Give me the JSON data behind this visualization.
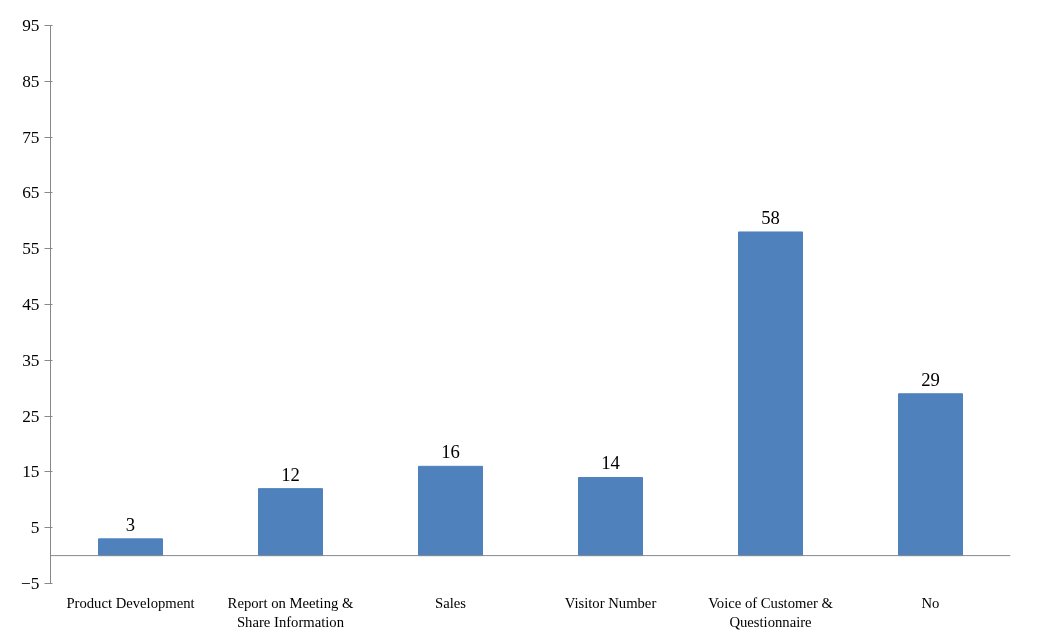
{
  "chart_data": {
    "type": "bar",
    "categories": [
      "Product Development",
      "Report on Meeting & Share Information",
      "Sales",
      "Visitor Number",
      "Voice of Customer & Questionnaire",
      "No"
    ],
    "values": [
      3,
      12,
      16,
      14,
      58,
      29
    ],
    "color": "#4f81bd",
    "ylim": [
      -5,
      95
    ],
    "yticks": [
      -5,
      5,
      15,
      25,
      35,
      45,
      55,
      65,
      75,
      85,
      95
    ],
    "data_labels": true,
    "grid": false
  }
}
